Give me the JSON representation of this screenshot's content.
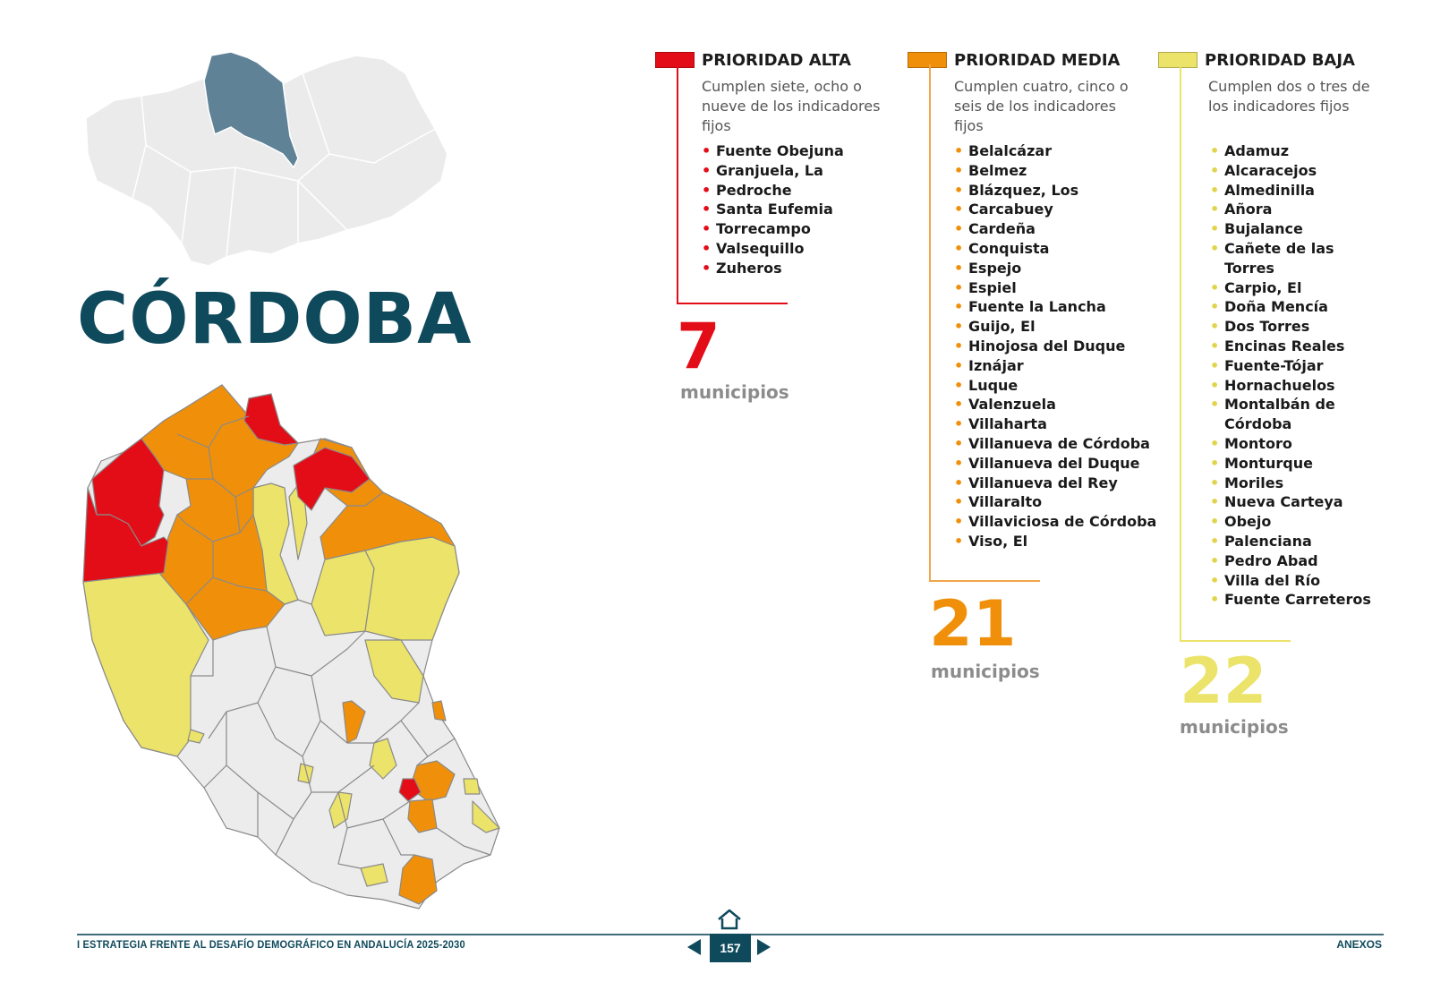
{
  "province": {
    "title": "CÓRDOBA"
  },
  "colors": {
    "alta": "#e30d17",
    "media": "#f0900a",
    "baja": "#ece36a",
    "sin_prioridad": "#ececec",
    "andalucia": "#ebebeb",
    "cordoba_highlight": "#5f8297",
    "title": "#0f4a5c"
  },
  "priorities": {
    "alta": {
      "label": "PRIORIDAD ALTA",
      "description": "Cumplen siete, ocho o nueve  de los indicadores fijos",
      "municipalities": [
        "Fuente Obejuna",
        "Granjuela, La",
        "Pedroche",
        "Santa Eufemia",
        "Torrecampo",
        "Valsequillo",
        "Zuheros"
      ],
      "count": "7",
      "count_label": "municipios"
    },
    "media": {
      "label": "PRIORIDAD MEDIA",
      "description": "Cumplen cuatro, cinco o seis de los indicadores fijos",
      "municipalities": [
        "Belalcázar",
        "Belmez",
        "Blázquez, Los",
        "Carcabuey",
        "Cardeña",
        "Conquista",
        "Espejo",
        "Espiel",
        "Fuente la Lancha",
        "Guijo, El",
        "Hinojosa del Duque",
        "Iznájar",
        "Luque",
        "Valenzuela",
        "Villaharta",
        "Villanueva de Córdoba",
        "Villanueva del Duque",
        "Villanueva del Rey",
        "Villaralto",
        "Villaviciosa de Córdoba",
        "Viso, El"
      ],
      "count": "21",
      "count_label": "municipios"
    },
    "baja": {
      "label": "PRIORIDAD BAJA",
      "description": "Cumplen dos o tres de los indicadores fijos",
      "municipalities": [
        "Adamuz",
        "Alcaracejos",
        "Almedinilla",
        "Añora",
        "Bujalance",
        "Cañete de las Torres",
        "Carpio, El",
        "Doña Mencía",
        "Dos Torres",
        "Encinas Reales",
        "Fuente-Tójar",
        "Hornachuelos",
        "Montalbán de Córdoba",
        "Montoro",
        "Monturque",
        "Moriles",
        "Nueva Carteya",
        "Obejo",
        "Palenciana",
        "Pedro Abad",
        "Villa del Río",
        "Fuente Carreteros"
      ],
      "count": "22",
      "count_label": "municipios"
    }
  },
  "footer": {
    "left": "I ESTRATEGIA FRENTE AL DESAFÍO DEMOGRÁFICO EN ANDALUCÍA 2025-2030",
    "page": "157",
    "right": "ANEXOS",
    "icons": {
      "home": "home-icon",
      "prev": "arrow-left-icon",
      "next": "arrow-right-icon"
    }
  }
}
